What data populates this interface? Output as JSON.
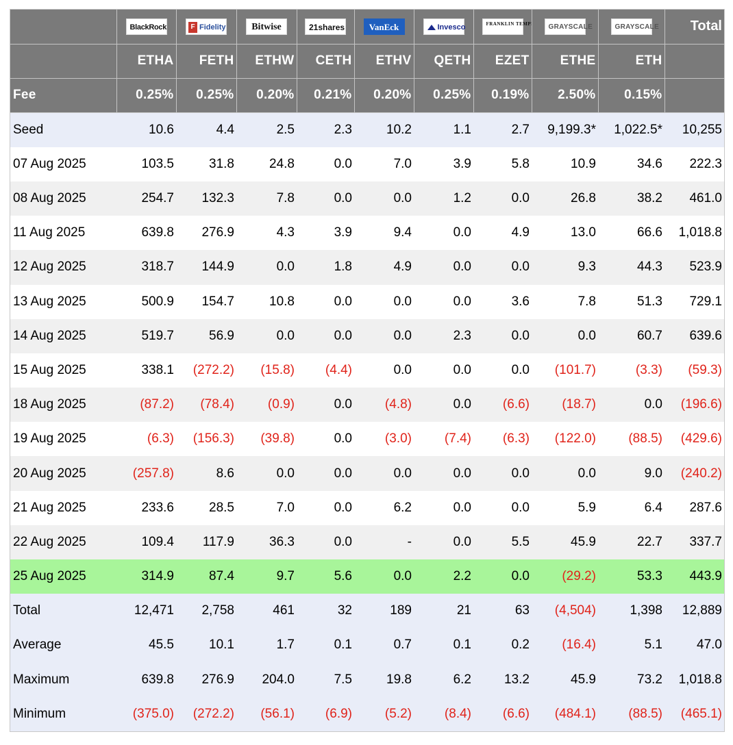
{
  "issuers": [
    {
      "name": "BlackRock",
      "icon": "blackrock-logo"
    },
    {
      "name": "Fidelity",
      "icon": "fidelity-logo"
    },
    {
      "name": "Bitwise",
      "icon": "bitwise-logo"
    },
    {
      "name": "21shares",
      "icon": "21shares-logo"
    },
    {
      "name": "VanEck",
      "icon": "vaneck-logo"
    },
    {
      "name": "Invesco",
      "icon": "invesco-logo"
    },
    {
      "name": "FRANKLIN TEMPLETON",
      "icon": "franklin-templeton-logo"
    },
    {
      "name": "GRAYSCALE",
      "icon": "grayscale-logo"
    },
    {
      "name": "GRAYSCALE",
      "icon": "grayscale-logo"
    }
  ],
  "header": {
    "total_label": "Total",
    "fee_label": "Fee",
    "tickers": [
      "ETHA",
      "FETH",
      "ETHW",
      "CETH",
      "ETHV",
      "QETH",
      "EZET",
      "ETHE",
      "ETH"
    ],
    "fees": [
      "0.25%",
      "0.25%",
      "0.20%",
      "0.21%",
      "0.20%",
      "0.25%",
      "0.19%",
      "2.50%",
      "0.15%"
    ]
  },
  "colors": {
    "header_bg": "#7a7a7a",
    "stripe_light": "#f0f0f0",
    "summary_bg": "#e9edf8",
    "highlight_bg": "#a8f59a",
    "negative_text": "#e0231a"
  },
  "seed": {
    "label": "Seed",
    "cells": [
      "10.6",
      "4.4",
      "2.5",
      "2.3",
      "10.2",
      "1.1",
      "2.7",
      "9,199.3*",
      "1,022.5*",
      "10,255"
    ]
  },
  "rows": [
    {
      "label": "07 Aug 2025",
      "cells": [
        "103.5",
        "31.8",
        "24.8",
        "0.0",
        "7.0",
        "3.9",
        "5.8",
        "10.9",
        "34.6",
        "222.3"
      ]
    },
    {
      "label": "08 Aug 2025",
      "cells": [
        "254.7",
        "132.3",
        "7.8",
        "0.0",
        "0.0",
        "1.2",
        "0.0",
        "26.8",
        "38.2",
        "461.0"
      ]
    },
    {
      "label": "11 Aug 2025",
      "cells": [
        "639.8",
        "276.9",
        "4.3",
        "3.9",
        "9.4",
        "0.0",
        "4.9",
        "13.0",
        "66.6",
        "1,018.8"
      ]
    },
    {
      "label": "12 Aug 2025",
      "cells": [
        "318.7",
        "144.9",
        "0.0",
        "1.8",
        "4.9",
        "0.0",
        "0.0",
        "9.3",
        "44.3",
        "523.9"
      ]
    },
    {
      "label": "13 Aug 2025",
      "cells": [
        "500.9",
        "154.7",
        "10.8",
        "0.0",
        "0.0",
        "0.0",
        "3.6",
        "7.8",
        "51.3",
        "729.1"
      ]
    },
    {
      "label": "14 Aug 2025",
      "cells": [
        "519.7",
        "56.9",
        "0.0",
        "0.0",
        "0.0",
        "2.3",
        "0.0",
        "0.0",
        "60.7",
        "639.6"
      ]
    },
    {
      "label": "15 Aug 2025",
      "cells": [
        "338.1",
        "(272.2)",
        "(15.8)",
        "(4.4)",
        "0.0",
        "0.0",
        "0.0",
        "(101.7)",
        "(3.3)",
        "(59.3)"
      ]
    },
    {
      "label": "18 Aug 2025",
      "cells": [
        "(87.2)",
        "(78.4)",
        "(0.9)",
        "0.0",
        "(4.8)",
        "0.0",
        "(6.6)",
        "(18.7)",
        "0.0",
        "(196.6)"
      ]
    },
    {
      "label": "19 Aug 2025",
      "cells": [
        "(6.3)",
        "(156.3)",
        "(39.8)",
        "0.0",
        "(3.0)",
        "(7.4)",
        "(6.3)",
        "(122.0)",
        "(88.5)",
        "(429.6)"
      ]
    },
    {
      "label": "20 Aug 2025",
      "cells": [
        "(257.8)",
        "8.6",
        "0.0",
        "0.0",
        "0.0",
        "0.0",
        "0.0",
        "0.0",
        "9.0",
        "(240.2)"
      ]
    },
    {
      "label": "21 Aug 2025",
      "cells": [
        "233.6",
        "28.5",
        "7.0",
        "0.0",
        "6.2",
        "0.0",
        "0.0",
        "5.9",
        "6.4",
        "287.6"
      ]
    },
    {
      "label": "22 Aug 2025",
      "cells": [
        "109.4",
        "117.9",
        "36.3",
        "0.0",
        "-",
        "0.0",
        "5.5",
        "45.9",
        "22.7",
        "337.7"
      ]
    },
    {
      "label": "25 Aug 2025",
      "cells": [
        "314.9",
        "87.4",
        "9.7",
        "5.6",
        "0.0",
        "2.2",
        "0.0",
        "(29.2)",
        "53.3",
        "443.9"
      ],
      "highlight": true
    }
  ],
  "stats": [
    {
      "label": "Total",
      "cells": [
        "12,471",
        "2,758",
        "461",
        "32",
        "189",
        "21",
        "63",
        "(4,504)",
        "1,398",
        "12,889"
      ]
    },
    {
      "label": "Average",
      "cells": [
        "45.5",
        "10.1",
        "1.7",
        "0.1",
        "0.7",
        "0.1",
        "0.2",
        "(16.4)",
        "5.1",
        "47.0"
      ]
    },
    {
      "label": "Maximum",
      "cells": [
        "639.8",
        "276.9",
        "204.0",
        "7.5",
        "19.8",
        "6.2",
        "13.2",
        "45.9",
        "73.2",
        "1,018.8"
      ]
    },
    {
      "label": "Minimum",
      "cells": [
        "(375.0)",
        "(272.2)",
        "(56.1)",
        "(6.9)",
        "(5.2)",
        "(8.4)",
        "(6.6)",
        "(484.1)",
        "(88.5)",
        "(465.1)"
      ]
    }
  ]
}
